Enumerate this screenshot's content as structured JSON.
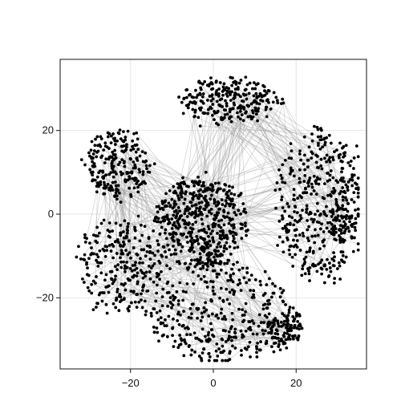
{
  "chart_data": {
    "type": "scatter",
    "title": "",
    "xlabel": "",
    "ylabel": "",
    "xlim": [
      -37,
      37
    ],
    "ylim": [
      -37,
      37
    ],
    "xticks": [
      -20,
      0,
      20
    ],
    "yticks": [
      -20,
      0,
      20
    ],
    "xtick_labels": [
      "−20",
      "0",
      "20"
    ],
    "ytick_labels": [
      "−20",
      "0",
      "20"
    ],
    "grid": true,
    "legend": "none",
    "colors": {
      "points": "#000000",
      "edges": "#9a9a9a",
      "grid": "#e6e6e6",
      "frame": "#111111"
    },
    "clusters": [
      {
        "name": "",
        "center": [
          -23,
          12
        ],
        "spread": [
          8,
          8
        ],
        "points": 230
      },
      {
        "name": "",
        "center": [
          4,
          27
        ],
        "spread": [
          12,
          5
        ],
        "points": 250
      },
      {
        "name": "",
        "center": [
          26,
          2
        ],
        "spread": [
          11,
          18
        ],
        "points": 400
      },
      {
        "name": "",
        "center": [
          -22,
          -12
        ],
        "spread": [
          11,
          11
        ],
        "points": 260
      },
      {
        "name": "",
        "center": [
          2,
          -24
        ],
        "spread": [
          18,
          12
        ],
        "points": 360
      },
      {
        "name": "",
        "center": [
          -3,
          -2
        ],
        "spread": [
          11,
          11
        ],
        "points": 520
      },
      {
        "name": "",
        "center": [
          30,
          -1
        ],
        "spread": [
          4,
          5
        ],
        "points": 70
      },
      {
        "name": "",
        "center": [
          17,
          -28
        ],
        "spread": [
          5,
          4
        ],
        "points": 90
      }
    ]
  }
}
